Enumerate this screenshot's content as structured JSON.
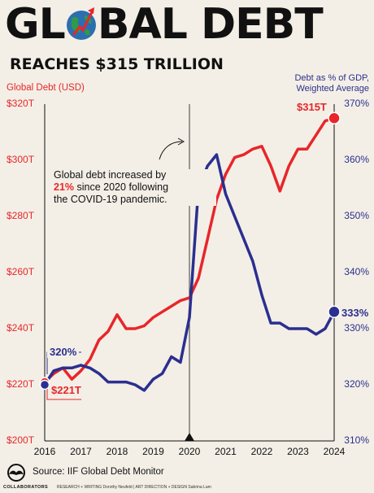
{
  "header": {
    "title_part1": "GL",
    "title_part2": "BAL DEBT",
    "subtitle": "REACHES $315 TRILLION"
  },
  "annotation": {
    "line1": "Global debt increased by",
    "pct": "21%",
    "line2_rest": " since 2020 following",
    "line3": "the COVID-19 pandemic."
  },
  "labels": {
    "start_pct": "320%",
    "start_usd": "$221T",
    "end_usd": "$315T",
    "end_pct": "333%"
  },
  "footer": {
    "source": "Source: IIF Global Debt Monitor",
    "brand": "COLLABORATORS",
    "credits": "RESEARCH + WRITING Dorothy Neufeld | ART DIRECTION + DESIGN Sabrina Lam"
  },
  "colors": {
    "debt_line": "#e8262a",
    "gdp_line": "#2b2f8f",
    "background": "#f3efe6"
  },
  "chart_data": {
    "type": "line",
    "title": "",
    "x_ticks": [
      "2016",
      "2017",
      "2018",
      "2019",
      "2020",
      "2021",
      "2022",
      "2023",
      "2024"
    ],
    "y_left": {
      "label": "Global Debt (USD)",
      "ticks": [
        "$200T",
        "$220T",
        "$240T",
        "$260T",
        "$280T",
        "$300T",
        "$320T"
      ],
      "lim": [
        200,
        320
      ]
    },
    "y_right": {
      "label_line1": "Debt as % of GDP,",
      "label_line2": "Weighted Average",
      "ticks": [
        "310%",
        "320%",
        "330%",
        "340%",
        "350%",
        "360%",
        "370%"
      ],
      "lim": [
        310,
        370
      ]
    },
    "reference_line_x": 2020,
    "series": [
      {
        "name": "Global Debt (USD)",
        "axis": "left",
        "x": [
          2016,
          2016.25,
          2016.5,
          2016.75,
          2017,
          2017.25,
          2017.5,
          2017.75,
          2018,
          2018.25,
          2018.5,
          2018.75,
          2019,
          2019.25,
          2019.5,
          2019.75,
          2020,
          2020.25,
          2020.5,
          2020.75,
          2021,
          2021.25,
          2021.5,
          2021.75,
          2022,
          2022.25,
          2022.5,
          2022.75,
          2023,
          2023.25,
          2023.5,
          2023.75,
          2024
        ],
        "values": [
          221,
          224,
          226,
          222,
          225,
          229,
          236,
          239,
          245,
          240,
          240,
          241,
          244,
          246,
          248,
          250,
          251,
          258,
          272,
          286,
          295,
          301,
          302,
          304,
          305,
          298,
          289,
          298,
          304,
          304,
          309,
          314,
          315
        ]
      },
      {
        "name": "Debt as % of GDP, Weighted Average",
        "axis": "right",
        "x": [
          2016,
          2016.25,
          2016.5,
          2016.75,
          2017,
          2017.25,
          2017.5,
          2017.75,
          2018,
          2018.25,
          2018.5,
          2018.75,
          2019,
          2019.25,
          2019.5,
          2019.75,
          2020,
          2020.25,
          2020.5,
          2020.75,
          2021,
          2021.25,
          2021.5,
          2021.75,
          2022,
          2022.25,
          2022.5,
          2022.75,
          2023,
          2023.25,
          2023.5,
          2023.75,
          2024
        ],
        "values": [
          320,
          322.5,
          323,
          323,
          323.5,
          323,
          322,
          320.5,
          320.5,
          320.5,
          320,
          319,
          321,
          322,
          325,
          324,
          332,
          355,
          359,
          361,
          354,
          350,
          346,
          342,
          336,
          331,
          331,
          330,
          330,
          330,
          329,
          330,
          333
        ]
      }
    ]
  }
}
